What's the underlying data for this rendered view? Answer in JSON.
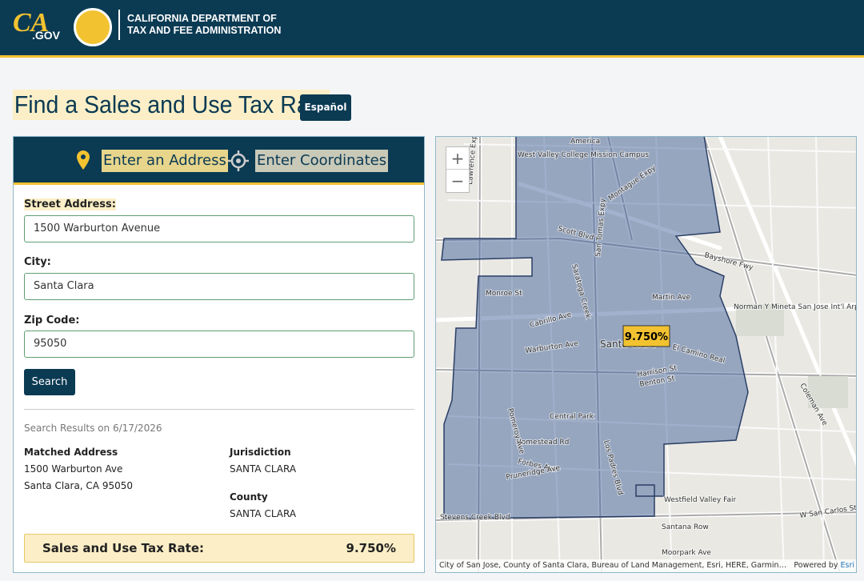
{
  "header": {
    "logo_ca": "CA",
    "logo_gov": ".GOV",
    "agency_line1": "CALIFORNIA DEPARTMENT OF",
    "agency_line2": "TAX AND FEE ADMINISTRATION"
  },
  "title": "Find a Sales and Use Tax Rate",
  "language_button": "Español",
  "tabs": [
    "Enter an Address",
    "Enter Coordinates"
  ],
  "form": {
    "fields": [
      {
        "label": "Street Address:",
        "value": "1500 Warburton Avenue"
      },
      {
        "label": "City:",
        "value": "Santa Clara"
      },
      {
        "label": "Zip Code:",
        "value": "95050"
      }
    ],
    "button": "Search"
  },
  "results": {
    "date": "Search Results on 6/17/2026",
    "matched_label": "Matched Address",
    "matched_lines": [
      "1500 Warburton Ave",
      "Santa Clara, CA 95050"
    ],
    "jurisdiction_label": "Jurisdiction",
    "jurisdiction": "SANTA CLARA",
    "county_label": "County",
    "county": "SANTA CLARA",
    "rate_label": "Sales and Use Tax Rate:",
    "rate": "9.750%"
  },
  "map": {
    "zoom": [
      "+",
      "−"
    ],
    "rate_label": "9.750%",
    "attribution": "City of San Jose, County of Santa Clara, Bureau of Land Management, Esri, HERE, Garmin…",
    "powered_by": "Powered by",
    "esri": "Esri",
    "labels": [
      "America",
      "West Valley College Mission Campus",
      "Scott Blvd",
      "Montague Expy",
      "Bayshore Fwy",
      "Saratoga Creek",
      "San Tomas Expy",
      "Monroe St",
      "Martin Ave",
      "Norman Y Mineta San Jose Int'l Arpt",
      "Cabrillo Ave",
      "Warburton Ave",
      "Santa Clara",
      "El Camino Real",
      "Harrison St",
      "Benton St",
      "Central Park",
      "Homestead Rd",
      "Forbes Ave",
      "Pruneridge Ave",
      "Stevens Creek Blvd",
      "Westfield Valley Fair",
      "Coleman Ave",
      "W San Carlos St",
      "Santana Row",
      "Moorpark Ave",
      "Lawrence Expy",
      "Los Padres Blvd",
      "Pomeroy Ave"
    ]
  }
}
